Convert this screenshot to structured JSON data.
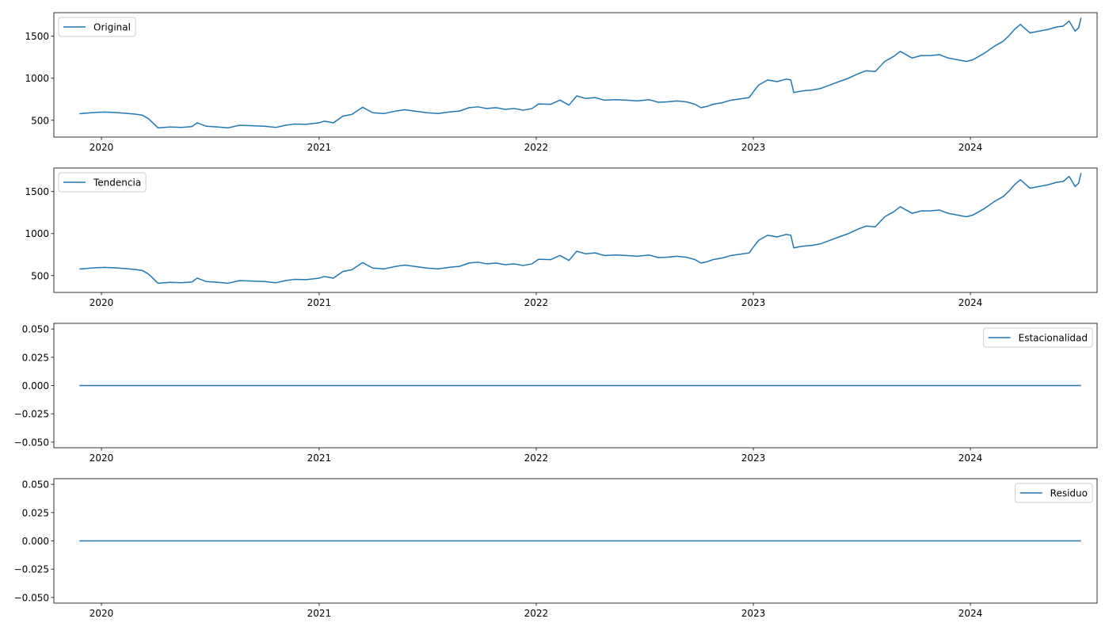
{
  "chart_data": [
    {
      "type": "line",
      "legend": "Original",
      "legend_loc": "upper left",
      "color": "#1f77b4",
      "x_ticks": [
        "2020",
        "2021",
        "2022",
        "2023",
        "2024"
      ],
      "y_ticks": [
        "500",
        "1000",
        "1500"
      ],
      "xlim": [
        "2019-10-13",
        "2024-08-01"
      ],
      "ylim": [
        300,
        1780
      ],
      "x": [
        "2019-11-25",
        "2019-12-15",
        "2020-01-05",
        "2020-01-25",
        "2020-02-15",
        "2020-02-28",
        "2020-03-10",
        "2020-03-20",
        "2020-04-05",
        "2020-04-25",
        "2020-05-15",
        "2020-06-01",
        "2020-06-10",
        "2020-06-25",
        "2020-07-15",
        "2020-08-01",
        "2020-08-20",
        "2020-09-10",
        "2020-10-01",
        "2020-10-20",
        "2020-11-05",
        "2020-11-20",
        "2020-12-10",
        "2021-01-01",
        "2021-01-10",
        "2021-01-25",
        "2021-02-10",
        "2021-02-25",
        "2021-03-15",
        "2021-04-01",
        "2021-04-20",
        "2021-05-10",
        "2021-05-25",
        "2021-06-15",
        "2021-07-01",
        "2021-07-20",
        "2021-08-10",
        "2021-08-25",
        "2021-09-10",
        "2021-09-25",
        "2021-10-10",
        "2021-10-25",
        "2021-11-10",
        "2021-11-25",
        "2021-12-10",
        "2021-12-25",
        "2022-01-05",
        "2022-01-25",
        "2022-02-10",
        "2022-02-25",
        "2022-03-10",
        "2022-03-25",
        "2022-04-10",
        "2022-04-25",
        "2022-05-15",
        "2022-06-01",
        "2022-06-20",
        "2022-07-10",
        "2022-07-25",
        "2022-08-10",
        "2022-08-25",
        "2022-09-10",
        "2022-09-25",
        "2022-10-05",
        "2022-10-15",
        "2022-10-25",
        "2022-11-10",
        "2022-11-25",
        "2022-12-10",
        "2022-12-25",
        "2022-12-31",
        "2023-01-10",
        "2023-01-25",
        "2023-02-10",
        "2023-02-25",
        "2023-03-05",
        "2023-03-10",
        "2023-03-25",
        "2023-04-10",
        "2023-04-25",
        "2023-05-10",
        "2023-05-25",
        "2023-06-10",
        "2023-06-25",
        "2023-07-10",
        "2023-07-25",
        "2023-08-10",
        "2023-08-25",
        "2023-09-05",
        "2023-09-15",
        "2023-09-25",
        "2023-10-10",
        "2023-10-25",
        "2023-11-10",
        "2023-11-25",
        "2023-12-10",
        "2023-12-25",
        "2024-01-05",
        "2024-01-25",
        "2024-02-10",
        "2024-02-25",
        "2024-03-05",
        "2024-03-15",
        "2024-03-25",
        "2024-04-10",
        "2024-04-25",
        "2024-05-10",
        "2024-05-25",
        "2024-06-05",
        "2024-06-15",
        "2024-06-25",
        "2024-07-01",
        "2024-07-05"
      ],
      "y": [
        578,
        590,
        598,
        592,
        580,
        572,
        560,
        520,
        410,
        420,
        415,
        425,
        470,
        430,
        420,
        410,
        440,
        435,
        430,
        415,
        440,
        455,
        452,
        470,
        490,
        470,
        550,
        570,
        655,
        590,
        580,
        610,
        625,
        605,
        590,
        580,
        600,
        610,
        650,
        660,
        640,
        650,
        630,
        640,
        620,
        640,
        695,
        690,
        740,
        680,
        790,
        760,
        770,
        740,
        745,
        740,
        730,
        745,
        715,
        720,
        730,
        720,
        690,
        650,
        665,
        690,
        710,
        740,
        755,
        770,
        830,
        920,
        980,
        960,
        990,
        980,
        830,
        850,
        860,
        880,
        920,
        960,
        1000,
        1050,
        1090,
        1080,
        1200,
        1260,
        1320,
        1280,
        1240,
        1270,
        1270,
        1280,
        1240,
        1220,
        1200,
        1220,
        1300,
        1380,
        1440,
        1500,
        1580,
        1640,
        1540,
        1560,
        1580,
        1610,
        1620,
        1680,
        1560,
        1600,
        1720
      ]
    },
    {
      "type": "line",
      "legend": "Tendencia",
      "legend_loc": "upper left",
      "color": "#1f77b4",
      "x_ticks": [
        "2020",
        "2021",
        "2022",
        "2023",
        "2024"
      ],
      "y_ticks": [
        "500",
        "1000",
        "1500"
      ],
      "xlim": [
        "2019-10-13",
        "2024-08-01"
      ],
      "ylim": [
        300,
        1780
      ],
      "x": [
        "2019-11-25",
        "2019-12-15",
        "2020-01-05",
        "2020-01-25",
        "2020-02-15",
        "2020-02-28",
        "2020-03-10",
        "2020-03-20",
        "2020-04-05",
        "2020-04-25",
        "2020-05-15",
        "2020-06-01",
        "2020-06-10",
        "2020-06-25",
        "2020-07-15",
        "2020-08-01",
        "2020-08-20",
        "2020-09-10",
        "2020-10-01",
        "2020-10-20",
        "2020-11-05",
        "2020-11-20",
        "2020-12-10",
        "2021-01-01",
        "2021-01-10",
        "2021-01-25",
        "2021-02-10",
        "2021-02-25",
        "2021-03-15",
        "2021-04-01",
        "2021-04-20",
        "2021-05-10",
        "2021-05-25",
        "2021-06-15",
        "2021-07-01",
        "2021-07-20",
        "2021-08-10",
        "2021-08-25",
        "2021-09-10",
        "2021-09-25",
        "2021-10-10",
        "2021-10-25",
        "2021-11-10",
        "2021-11-25",
        "2021-12-10",
        "2021-12-25",
        "2022-01-05",
        "2022-01-25",
        "2022-02-10",
        "2022-02-25",
        "2022-03-10",
        "2022-03-25",
        "2022-04-10",
        "2022-04-25",
        "2022-05-15",
        "2022-06-01",
        "2022-06-20",
        "2022-07-10",
        "2022-07-25",
        "2022-08-10",
        "2022-08-25",
        "2022-09-10",
        "2022-09-25",
        "2022-10-05",
        "2022-10-15",
        "2022-10-25",
        "2022-11-10",
        "2022-11-25",
        "2022-12-10",
        "2022-12-25",
        "2022-12-31",
        "2023-01-10",
        "2023-01-25",
        "2023-02-10",
        "2023-02-25",
        "2023-03-05",
        "2023-03-10",
        "2023-03-25",
        "2023-04-10",
        "2023-04-25",
        "2023-05-10",
        "2023-05-25",
        "2023-06-10",
        "2023-06-25",
        "2023-07-10",
        "2023-07-25",
        "2023-08-10",
        "2023-08-25",
        "2023-09-05",
        "2023-09-15",
        "2023-09-25",
        "2023-10-10",
        "2023-10-25",
        "2023-11-10",
        "2023-11-25",
        "2023-12-10",
        "2023-12-25",
        "2024-01-05",
        "2024-01-25",
        "2024-02-10",
        "2024-02-25",
        "2024-03-05",
        "2024-03-15",
        "2024-03-25",
        "2024-04-10",
        "2024-04-25",
        "2024-05-10",
        "2024-05-25",
        "2024-06-05",
        "2024-06-15",
        "2024-06-25",
        "2024-07-01",
        "2024-07-05"
      ],
      "y": [
        578,
        590,
        598,
        592,
        580,
        572,
        560,
        520,
        410,
        420,
        415,
        425,
        470,
        430,
        420,
        410,
        440,
        435,
        430,
        415,
        440,
        455,
        452,
        470,
        490,
        470,
        550,
        570,
        655,
        590,
        580,
        610,
        625,
        605,
        590,
        580,
        600,
        610,
        650,
        660,
        640,
        650,
        630,
        640,
        620,
        640,
        695,
        690,
        740,
        680,
        790,
        760,
        770,
        740,
        745,
        740,
        730,
        745,
        715,
        720,
        730,
        720,
        690,
        650,
        665,
        690,
        710,
        740,
        755,
        770,
        830,
        920,
        980,
        960,
        990,
        980,
        830,
        850,
        860,
        880,
        920,
        960,
        1000,
        1050,
        1090,
        1080,
        1200,
        1260,
        1320,
        1280,
        1240,
        1270,
        1270,
        1280,
        1240,
        1220,
        1200,
        1220,
        1300,
        1380,
        1440,
        1500,
        1580,
        1640,
        1540,
        1560,
        1580,
        1610,
        1620,
        1680,
        1560,
        1600,
        1720
      ]
    },
    {
      "type": "line",
      "legend": "Estacionalidad",
      "legend_loc": "upper right",
      "color": "#1f77b4",
      "x_ticks": [
        "2020",
        "2021",
        "2022",
        "2023",
        "2024"
      ],
      "y_ticks": [
        "0.050",
        "0.025",
        "0.000",
        "−0.025",
        "−0.050"
      ],
      "xlim": [
        "2019-10-13",
        "2024-08-01"
      ],
      "ylim": [
        -0.055,
        0.055
      ],
      "x": [
        "2019-11-25",
        "2024-07-05"
      ],
      "y": [
        0,
        0
      ]
    },
    {
      "type": "line",
      "legend": "Residuo",
      "legend_loc": "upper right",
      "color": "#1f77b4",
      "x_ticks": [
        "2020",
        "2021",
        "2022",
        "2023",
        "2024"
      ],
      "y_ticks": [
        "0.050",
        "0.025",
        "0.000",
        "−0.025",
        "−0.050"
      ],
      "xlim": [
        "2019-10-13",
        "2024-08-01"
      ],
      "ylim": [
        -0.055,
        0.055
      ],
      "x": [
        "2019-11-25",
        "2024-07-05"
      ],
      "y": [
        0,
        0
      ]
    }
  ]
}
